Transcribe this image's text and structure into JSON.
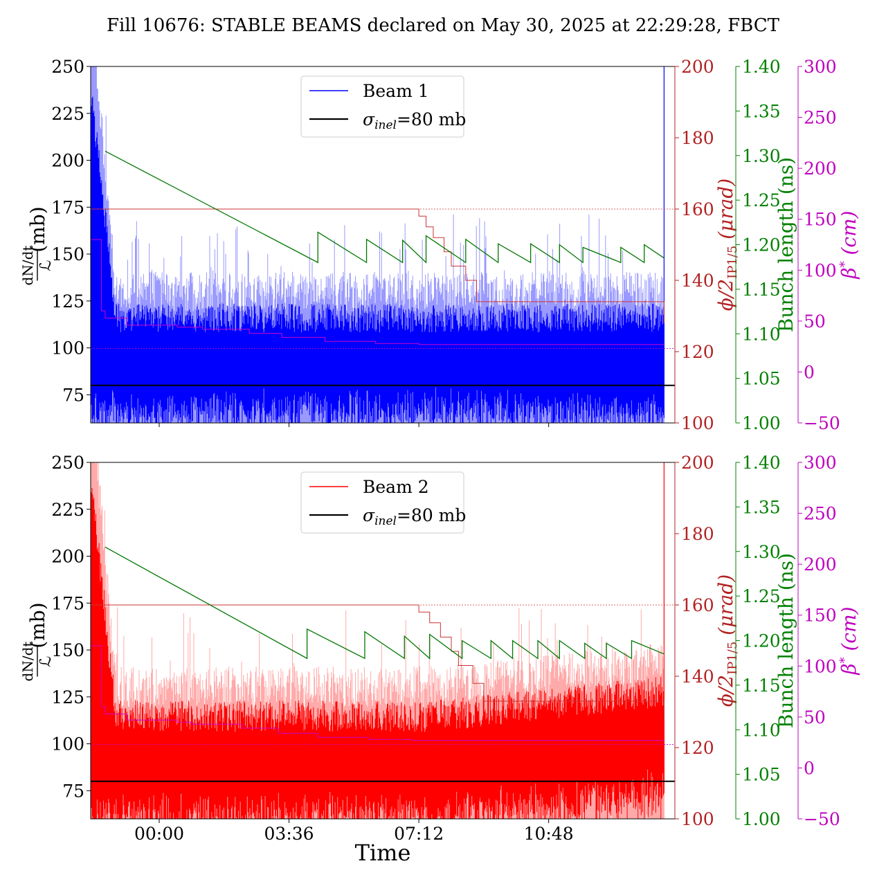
{
  "title": "Fill 10676: STABLE BEAMS declared on May 30, 2025 at 22:29:28, FBCT",
  "xlabel": "Time",
  "x_ticks": [
    "00:00",
    "03:36",
    "07:12",
    "10:48"
  ],
  "axes": {
    "left": {
      "label_num": "dN/dt",
      "label_den": "ℒ",
      "label_unit": "(mb)",
      "ylim": [
        60,
        250
      ],
      "ticks": [
        75,
        100,
        125,
        150,
        175,
        200,
        225,
        250
      ]
    },
    "red": {
      "label": "ϕ/2",
      "label_sub": "IP1/5",
      "label_unit": "(μrad)",
      "ylim": [
        100,
        200
      ],
      "ticks": [
        100,
        120,
        140,
        160,
        180,
        200
      ]
    },
    "green": {
      "label": "Bunch length (ns)",
      "ylim": [
        1.0,
        1.4
      ],
      "ticks": [
        "1.00",
        "1.05",
        "1.10",
        "1.15",
        "1.20",
        "1.25",
        "1.30",
        "1.35",
        "1.40"
      ]
    },
    "magenta": {
      "label": "β",
      "label_sup": "*",
      "label_unit": "(cm)",
      "ylim": [
        -50,
        300
      ],
      "ticks": [
        -50,
        0,
        50,
        100,
        150,
        200,
        250,
        300
      ]
    }
  },
  "colors": {
    "beam1": "#0000ff",
    "beam1_light": "#9999ff",
    "beam2": "#ff0000",
    "beam2_light": "#ffaaaa",
    "sigma": "#000000",
    "crossing": "#cc3333",
    "bunch": "#007700",
    "beta": "#cc00cc",
    "axis_red": "#b22222",
    "axis_green": "#008000",
    "axis_magenta": "#bf00bf"
  },
  "chart_data": [
    {
      "type": "line",
      "legend": [
        {
          "label": "Beam 1"
        },
        {
          "label": "σ",
          "label_sub": "inel",
          "label_tail": "=80 mb"
        }
      ],
      "x_time_hours": [
        -1.9,
        14.0
      ],
      "series": [
        {
          "name": "Beam 1",
          "axis": "left",
          "baseline": 95,
          "spread_light": 35,
          "spread_dark": 22,
          "spike_max": 250,
          "end_spike": 250
        },
        {
          "name": "σinel=80 mb",
          "axis": "left",
          "constant": 80
        },
        {
          "axis": "red",
          "x": [
            -1.9,
            -1.5,
            7.1,
            7.2,
            7.4,
            7.6,
            7.9,
            8.1,
            8.5,
            8.8,
            14.0
          ],
          "y": [
            160,
            160,
            160,
            158,
            155,
            152,
            148,
            144,
            140,
            134,
            128
          ]
        },
        {
          "axis": "red",
          "reference": 160
        },
        {
          "axis": "magenta",
          "reference": 23
        },
        {
          "axis": "magenta",
          "x": [
            -1.9,
            -1.6,
            -1.5,
            -0.9,
            0.5,
            1.2,
            2.5,
            3.4,
            4.6,
            6.0,
            7.2,
            14.0
          ],
          "y": [
            130,
            60,
            53,
            46,
            44,
            42,
            38,
            34,
            30,
            28,
            27,
            27
          ]
        },
        {
          "axis": "green",
          "sawtooth": {
            "start": [
              -1.5,
              1.305
            ],
            "segments": [
              [
                4.4,
                1.18,
                1.214
              ],
              [
                5.75,
                1.18,
                1.206
              ],
              [
                6.75,
                1.18,
                1.205
              ],
              [
                7.4,
                1.18,
                1.21
              ],
              [
                8.5,
                1.18,
                1.206
              ],
              [
                9.4,
                1.18,
                1.201
              ],
              [
                10.3,
                1.18,
                1.201
              ],
              [
                11.1,
                1.18,
                1.2
              ],
              [
                11.75,
                1.18,
                1.197
              ],
              [
                12.8,
                1.18,
                1.197
              ],
              [
                13.45,
                1.18,
                1.2
              ],
              [
                14.0,
                1.185,
                null
              ]
            ]
          }
        }
      ]
    },
    {
      "type": "line",
      "legend": [
        {
          "label": "Beam 2"
        },
        {
          "label": "σ",
          "label_sub": "inel",
          "label_tail": "=80 mb"
        }
      ],
      "x_time_hours": [
        -1.9,
        14.0
      ],
      "series": [
        {
          "name": "Beam 2",
          "axis": "left",
          "baseline": 92,
          "spread_light": 38,
          "spread_dark": 24,
          "spike_max": 250,
          "end_spike": 250,
          "trend_end": 105
        },
        {
          "name": "σinel=80 mb",
          "axis": "left",
          "constant": 80
        },
        {
          "axis": "red",
          "x": [
            -1.9,
            -1.5,
            7.1,
            7.2,
            7.5,
            7.8,
            8.1,
            8.3,
            8.7,
            9.0,
            14.0
          ],
          "y": [
            160,
            160,
            160,
            158,
            155,
            151,
            147,
            143,
            138,
            133,
            128
          ]
        },
        {
          "axis": "red",
          "reference": 160
        },
        {
          "axis": "magenta",
          "reference": 23
        },
        {
          "axis": "magenta",
          "x": [
            -1.9,
            -1.6,
            -1.5,
            -0.9,
            0.5,
            0.9,
            2.3,
            3.3,
            4.4,
            5.8,
            7.0,
            14.0
          ],
          "y": [
            120,
            60,
            53,
            47,
            45,
            43,
            39,
            34,
            30,
            28,
            27,
            27
          ]
        },
        {
          "axis": "green",
          "sawtooth": {
            "start": [
              -1.5,
              1.305
            ],
            "segments": [
              [
                4.1,
                1.18,
                1.213
              ],
              [
                5.7,
                1.18,
                1.21
              ],
              [
                6.8,
                1.18,
                1.205
              ],
              [
                7.5,
                1.18,
                1.207
              ],
              [
                8.4,
                1.18,
                1.2
              ],
              [
                9.2,
                1.18,
                1.2
              ],
              [
                9.8,
                1.18,
                1.2
              ],
              [
                10.5,
                1.18,
                1.2
              ],
              [
                11.1,
                1.18,
                1.2
              ],
              [
                11.8,
                1.18,
                1.197
              ],
              [
                12.4,
                1.18,
                1.197
              ],
              [
                13.1,
                1.18,
                1.2
              ],
              [
                14.0,
                1.185,
                null
              ]
            ]
          }
        }
      ]
    }
  ]
}
